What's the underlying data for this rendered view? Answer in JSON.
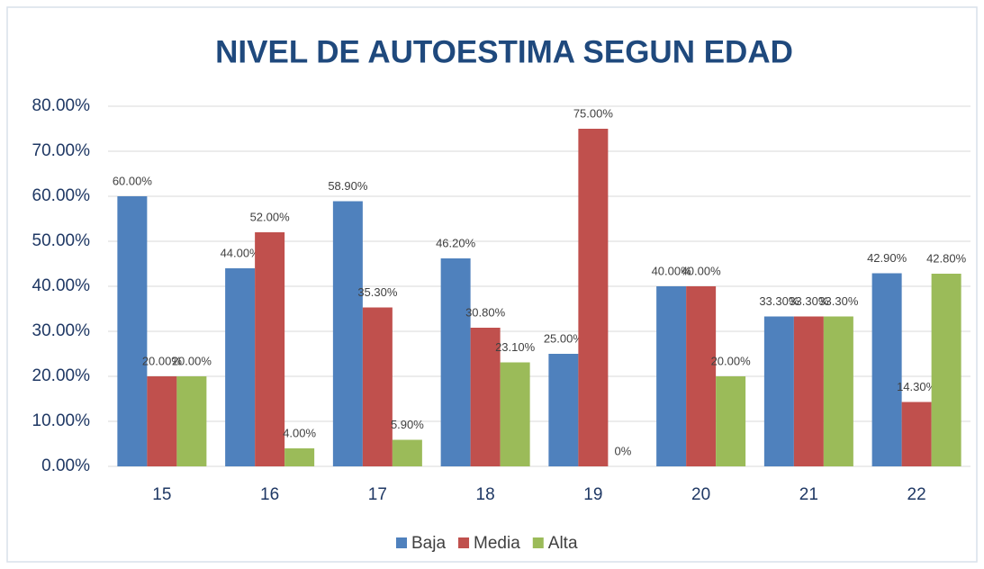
{
  "chart_data": {
    "type": "bar",
    "title": "NIVEL DE AUTOESTIMA SEGUN EDAD",
    "categories": [
      "15",
      "16",
      "17",
      "18",
      "19",
      "20",
      "21",
      "22"
    ],
    "series": [
      {
        "name": "Baja",
        "color": "#4f81bd",
        "values": [
          60,
          44,
          58.9,
          46.2,
          25,
          40,
          33.3,
          42.9
        ],
        "value_labels": [
          "60.00%",
          "44.00%",
          "58.90%",
          "46.20%",
          "25.00%",
          "40.00%",
          "33.30%",
          "42.90%"
        ]
      },
      {
        "name": "Media",
        "color": "#c0504d",
        "values": [
          20,
          52,
          35.3,
          30.8,
          75,
          40,
          33.3,
          14.3
        ],
        "value_labels": [
          "20.00%",
          "52.00%",
          "35.30%",
          "30.80%",
          "75.00%",
          "40.00%",
          "33.30%",
          "14.30%"
        ]
      },
      {
        "name": "Alta",
        "color": "#9bbb59",
        "values": [
          20,
          4,
          5.9,
          23.1,
          0,
          20,
          33.3,
          42.8
        ],
        "value_labels": [
          "20.00%",
          "4.00%",
          "5.90%",
          "23.10%",
          "0%",
          "20.00%",
          "33.30%",
          "42.80%"
        ]
      }
    ],
    "ylim": [
      0,
      80
    ],
    "yticks": [
      {
        "value": 0,
        "label": "0.00%"
      },
      {
        "value": 10,
        "label": "10.00%"
      },
      {
        "value": 20,
        "label": "20.00%"
      },
      {
        "value": 30,
        "label": "30.00%"
      },
      {
        "value": 40,
        "label": "40.00%"
      },
      {
        "value": 50,
        "label": "50.00%"
      },
      {
        "value": 60,
        "label": "60.00%"
      },
      {
        "value": 70,
        "label": "70.00%"
      },
      {
        "value": 80,
        "label": "80.00%"
      }
    ],
    "grid": true,
    "legend": "bottom"
  }
}
